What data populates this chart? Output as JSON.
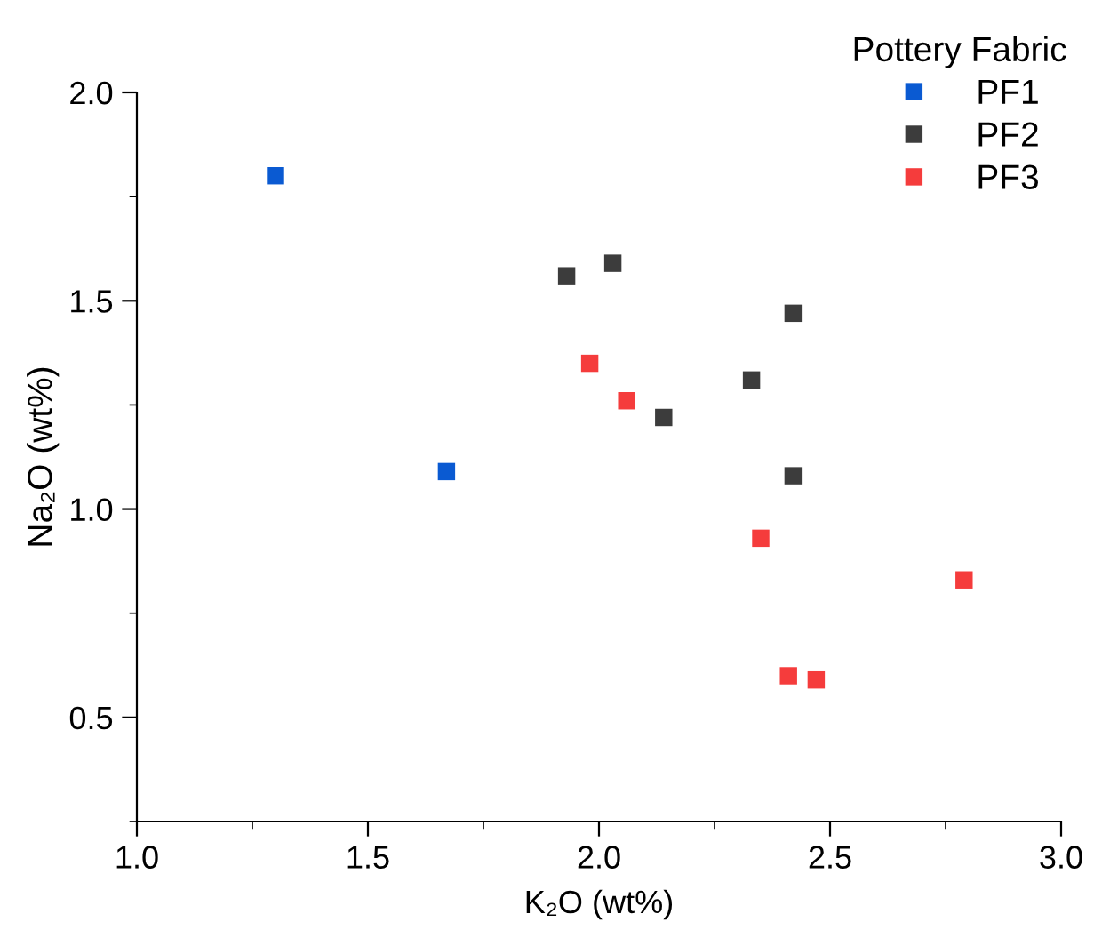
{
  "chart_data": {
    "type": "scatter",
    "xlabel": "K₂O (wt%)",
    "ylabel": "Na₂O (wt%)",
    "legend_title": "Pottery Fabric",
    "xlim": [
      1.0,
      3.0
    ],
    "ylim": [
      0.25,
      2.0
    ],
    "xticks": [
      {
        "value": 1,
        "label": "1.0"
      },
      1.5,
      {
        "value": 2,
        "label": "2.0"
      },
      2.5,
      {
        "value": 3,
        "label": "3.0"
      }
    ],
    "yticks": [
      0.5,
      {
        "value": 1,
        "label": "1.0"
      },
      1.5,
      {
        "value": 2,
        "label": "2.0"
      }
    ],
    "grid": false,
    "legend": "top right",
    "marker": "square",
    "series": [
      {
        "name": "PF1",
        "color": "#0a5ad2",
        "x": [
          1.3,
          1.67
        ],
        "values": [
          1.8,
          1.09
        ]
      },
      {
        "name": "PF2",
        "color": "#3c3c3c",
        "x": [
          1.93,
          2.03,
          2.42,
          2.33,
          2.14,
          2.42
        ],
        "values": [
          1.56,
          1.59,
          1.47,
          1.31,
          1.22,
          1.08
        ]
      },
      {
        "name": "PF3",
        "color": "#f53c3c",
        "x": [
          1.98,
          2.06,
          2.35,
          2.79,
          2.41,
          2.47
        ],
        "values": [
          1.35,
          1.26,
          0.93,
          0.83,
          0.6,
          0.59
        ]
      }
    ]
  }
}
